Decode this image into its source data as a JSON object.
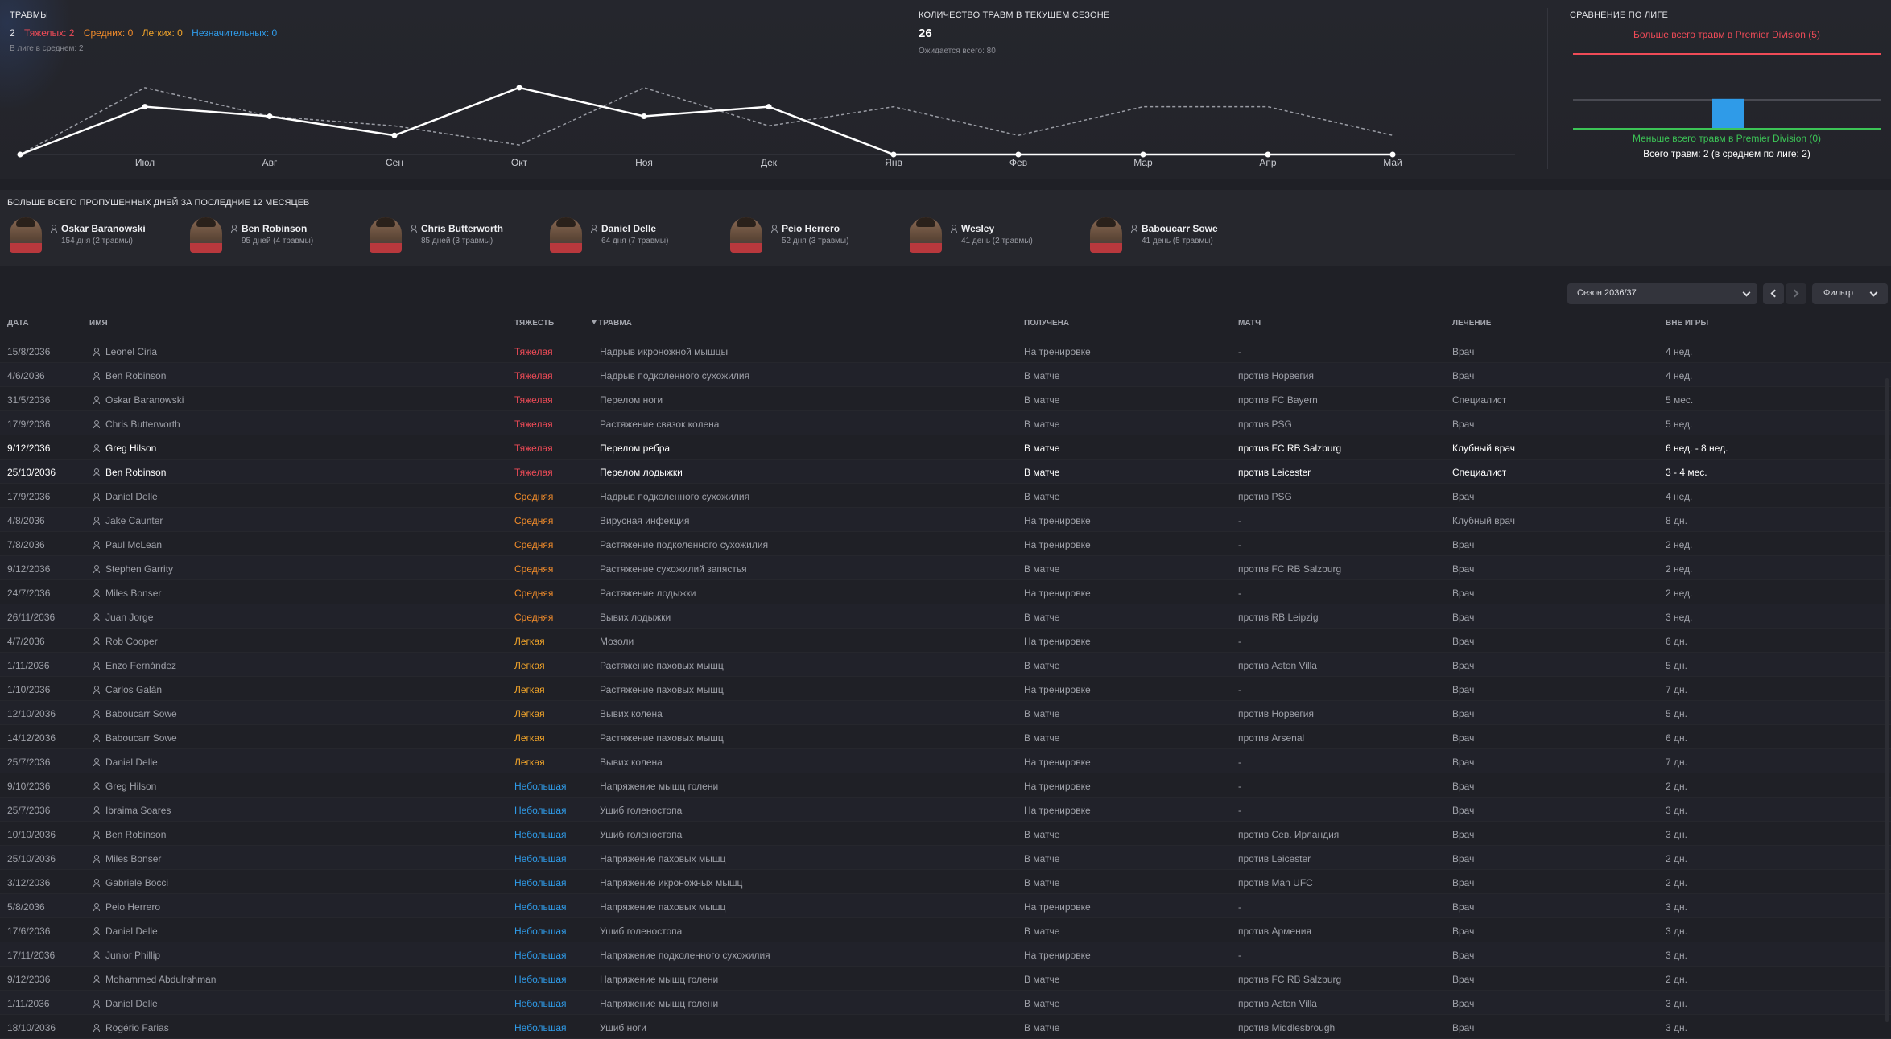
{
  "injuries": {
    "title": "ТРАВМЫ",
    "total": "2",
    "severe": "Тяжелых: 2",
    "medium": "Средних: 0",
    "light": "Легких: 0",
    "minor": "Незначительных: 0",
    "league_avg": "В лиге в среднем: 2"
  },
  "season_count": {
    "title": "КОЛИЧЕСТВО ТРАВМ В ТЕКУЩЕМ СЕЗОНЕ",
    "value": "26",
    "expected": "Ожидается всего: 80"
  },
  "league_compare": {
    "title": "СРАВНЕНИЕ ПО ЛИГЕ",
    "most_label": "Больше всего травм в Premier Division (5)",
    "least_label": "Меньше всего травм в Premier Division (0)",
    "total_label": "Всего травм: 2 (в среднем по лиге: 2)",
    "min": 0,
    "max": 5,
    "value": 2,
    "average": 2
  },
  "chart_data": {
    "type": "line",
    "categories": [
      "",
      "Июл",
      "Авг",
      "Сен",
      "Окт",
      "Ноя",
      "Дек",
      "Янв",
      "Фев",
      "Мар",
      "Апр",
      "Май"
    ],
    "series": [
      {
        "values": [
          0,
          5,
          4,
          2,
          7,
          4,
          5,
          0,
          0,
          0,
          0,
          0
        ]
      },
      {
        "values": [
          0,
          7,
          4,
          3,
          1,
          7,
          3,
          5,
          2,
          5,
          5,
          2
        ]
      }
    ],
    "ylim": [
      0,
      8
    ],
    "colors": {
      "current": "#ffffff",
      "previous": "#9a9ca4"
    }
  },
  "most_missed": {
    "title": "БОЛЬШЕ ВСЕГО ПРОПУЩЕННЫХ ДНЕЙ ЗА ПОСЛЕДНИЕ 12 МЕСЯЦЕВ",
    "players": [
      {
        "name": "Oskar Baranowski",
        "days": "154 дня (2 травмы)"
      },
      {
        "name": "Ben Robinson",
        "days": "95 дней (4 травмы)"
      },
      {
        "name": "Chris Butterworth",
        "days": "85 дней (3 травмы)"
      },
      {
        "name": "Daniel Delle",
        "days": "64 дня (7 травмы)"
      },
      {
        "name": "Peio Herrero",
        "days": "52 дня (3 травмы)"
      },
      {
        "name": "Wesley",
        "days": "41 день (2 травмы)"
      },
      {
        "name": "Baboucarr Sowe",
        "days": "41 день (5 травмы)"
      }
    ]
  },
  "controls": {
    "season": "Сезон 2036/37",
    "filter": "Фильтр"
  },
  "table": {
    "headers": {
      "date": "ДАТА",
      "name": "ИМЯ",
      "severity": "ТЯЖЕСТЬ",
      "injury": "ТРАВМА",
      "received": "ПОЛУЧЕНА",
      "match": "МАТЧ",
      "treatment": "ЛЕЧЕНИЕ",
      "out": "ВНЕ ИГРЫ"
    },
    "rows": [
      {
        "date": "15/8/2036",
        "name": "Leonel Ciria",
        "severity": "Тяжелая",
        "level": "severe",
        "injury": "Надрыв икроножной мышцы",
        "received": "На тренировке",
        "match": "-",
        "treatment": "Врач",
        "out": "4 нед."
      },
      {
        "date": "4/6/2036",
        "name": "Ben Robinson",
        "severity": "Тяжелая",
        "level": "severe",
        "injury": "Надрыв подколенного сухожилия",
        "received": "В матче",
        "match": "против Норвегия",
        "treatment": "Врач",
        "out": "4 нед."
      },
      {
        "date": "31/5/2036",
        "name": "Oskar Baranowski",
        "severity": "Тяжелая",
        "level": "severe",
        "injury": "Перелом ноги",
        "received": "В матче",
        "match": "против FC Bayern",
        "treatment": "Специалист",
        "out": "5 мес."
      },
      {
        "date": "17/9/2036",
        "name": "Chris Butterworth",
        "severity": "Тяжелая",
        "level": "severe",
        "injury": "Растяжение связок колена",
        "received": "В матче",
        "match": "против PSG",
        "treatment": "Врач",
        "out": "5 нед."
      },
      {
        "date": "9/12/2036",
        "name": "Greg Hilson",
        "severity": "Тяжелая",
        "level": "severe",
        "injury": "Перелом ребра",
        "received": "В матче",
        "match": "против FC RB Salzburg",
        "treatment": "Клубный врач",
        "out": "6 нед. - 8 нед.",
        "current": true
      },
      {
        "date": "25/10/2036",
        "name": "Ben Robinson",
        "severity": "Тяжелая",
        "level": "severe",
        "injury": "Перелом лодыжки",
        "received": "В матче",
        "match": "против Leicester",
        "treatment": "Специалист",
        "out": "3 - 4 мес.",
        "current": true
      },
      {
        "date": "17/9/2036",
        "name": "Daniel Delle",
        "severity": "Средняя",
        "level": "medium",
        "injury": "Надрыв подколенного сухожилия",
        "received": "В матче",
        "match": "против PSG",
        "treatment": "Врач",
        "out": "4 нед."
      },
      {
        "date": "4/8/2036",
        "name": "Jake Caunter",
        "severity": "Средняя",
        "level": "medium",
        "injury": "Вирусная инфекция",
        "received": "На тренировке",
        "match": "-",
        "treatment": "Клубный врач",
        "out": "8 дн."
      },
      {
        "date": "7/8/2036",
        "name": "Paul McLean",
        "severity": "Средняя",
        "level": "medium",
        "injury": "Растяжение подколенного сухожилия",
        "received": "На тренировке",
        "match": "-",
        "treatment": "Врач",
        "out": "2 нед."
      },
      {
        "date": "9/12/2036",
        "name": "Stephen Garrity",
        "severity": "Средняя",
        "level": "medium",
        "injury": "Растяжение сухожилий запястья",
        "received": "В матче",
        "match": "против FC RB Salzburg",
        "treatment": "Врач",
        "out": "2 нед."
      },
      {
        "date": "24/7/2036",
        "name": "Miles Bonser",
        "severity": "Средняя",
        "level": "medium",
        "injury": "Растяжение лодыжки",
        "received": "На тренировке",
        "match": "-",
        "treatment": "Врач",
        "out": "2 нед."
      },
      {
        "date": "26/11/2036",
        "name": "Juan Jorge",
        "severity": "Средняя",
        "level": "medium",
        "injury": "Вывих лодыжки",
        "received": "В матче",
        "match": "против RB Leipzig",
        "treatment": "Врач",
        "out": "3 нед."
      },
      {
        "date": "4/7/2036",
        "name": "Rob Cooper",
        "severity": "Легкая",
        "level": "light",
        "injury": "Мозоли",
        "received": "На тренировке",
        "match": "-",
        "treatment": "Врач",
        "out": "6 дн."
      },
      {
        "date": "1/11/2036",
        "name": "Enzo Fernández",
        "severity": "Легкая",
        "level": "light",
        "injury": "Растяжение паховых мышц",
        "received": "В матче",
        "match": "против Aston Villa",
        "treatment": "Врач",
        "out": "5 дн."
      },
      {
        "date": "1/10/2036",
        "name": "Carlos Galán",
        "severity": "Легкая",
        "level": "light",
        "injury": "Растяжение паховых мышц",
        "received": "На тренировке",
        "match": "-",
        "treatment": "Врач",
        "out": "7 дн."
      },
      {
        "date": "12/10/2036",
        "name": "Baboucarr Sowe",
        "severity": "Легкая",
        "level": "light",
        "injury": "Вывих колена",
        "received": "В матче",
        "match": "против Норвегия",
        "treatment": "Врач",
        "out": "5 дн."
      },
      {
        "date": "14/12/2036",
        "name": "Baboucarr Sowe",
        "severity": "Легкая",
        "level": "light",
        "injury": "Растяжение паховых мышц",
        "received": "В матче",
        "match": "против Arsenal",
        "treatment": "Врач",
        "out": "6 дн."
      },
      {
        "date": "25/7/2036",
        "name": "Daniel Delle",
        "severity": "Легкая",
        "level": "light",
        "injury": "Вывих колена",
        "received": "На тренировке",
        "match": "-",
        "treatment": "Врач",
        "out": "7 дн."
      },
      {
        "date": "9/10/2036",
        "name": "Greg Hilson",
        "severity": "Небольшая",
        "level": "minor",
        "injury": "Напряжение мышц голени",
        "received": "На тренировке",
        "match": "-",
        "treatment": "Врач",
        "out": "2 дн."
      },
      {
        "date": "25/7/2036",
        "name": "Ibraima Soares",
        "severity": "Небольшая",
        "level": "minor",
        "injury": "Ушиб голеностопа",
        "received": "На тренировке",
        "match": "-",
        "treatment": "Врач",
        "out": "3 дн."
      },
      {
        "date": "10/10/2036",
        "name": "Ben Robinson",
        "severity": "Небольшая",
        "level": "minor",
        "injury": "Ушиб голеностопа",
        "received": "В матче",
        "match": "против Сев. Ирландия",
        "treatment": "Врач",
        "out": "3 дн."
      },
      {
        "date": "25/10/2036",
        "name": "Miles Bonser",
        "severity": "Небольшая",
        "level": "minor",
        "injury": "Напряжение паховых мышц",
        "received": "В матче",
        "match": "против Leicester",
        "treatment": "Врач",
        "out": "2 дн."
      },
      {
        "date": "3/12/2036",
        "name": "Gabriele Bocci",
        "severity": "Небольшая",
        "level": "minor",
        "injury": "Напряжение икроножных мышц",
        "received": "В матче",
        "match": "против Man UFC",
        "treatment": "Врач",
        "out": "2 дн."
      },
      {
        "date": "5/8/2036",
        "name": "Peio Herrero",
        "severity": "Небольшая",
        "level": "minor",
        "injury": "Напряжение паховых мышц",
        "received": "На тренировке",
        "match": "-",
        "treatment": "Врач",
        "out": "3 дн."
      },
      {
        "date": "17/6/2036",
        "name": "Daniel Delle",
        "severity": "Небольшая",
        "level": "minor",
        "injury": "Ушиб голеностопа",
        "received": "В матче",
        "match": "против Армения",
        "treatment": "Врач",
        "out": "3 дн."
      },
      {
        "date": "17/11/2036",
        "name": "Junior Phillip",
        "severity": "Небольшая",
        "level": "minor",
        "injury": "Напряжение подколенного сухожилия",
        "received": "На тренировке",
        "match": "-",
        "treatment": "Врач",
        "out": "3 дн."
      },
      {
        "date": "9/12/2036",
        "name": "Mohammed Abdulrahman",
        "severity": "Небольшая",
        "level": "minor",
        "injury": "Напряжение мышц голени",
        "received": "В матче",
        "match": "против FC RB Salzburg",
        "treatment": "Врач",
        "out": "2 дн."
      },
      {
        "date": "1/11/2036",
        "name": "Daniel Delle",
        "severity": "Небольшая",
        "level": "minor",
        "injury": "Напряжение мышц голени",
        "received": "В матче",
        "match": "против Aston Villa",
        "treatment": "Врач",
        "out": "3 дн."
      },
      {
        "date": "18/10/2036",
        "name": "Rogério Farias",
        "severity": "Небольшая",
        "level": "minor",
        "injury": "Ушиб ноги",
        "received": "В матче",
        "match": "против Middlesbrough",
        "treatment": "Врач",
        "out": "3 дн."
      }
    ]
  }
}
